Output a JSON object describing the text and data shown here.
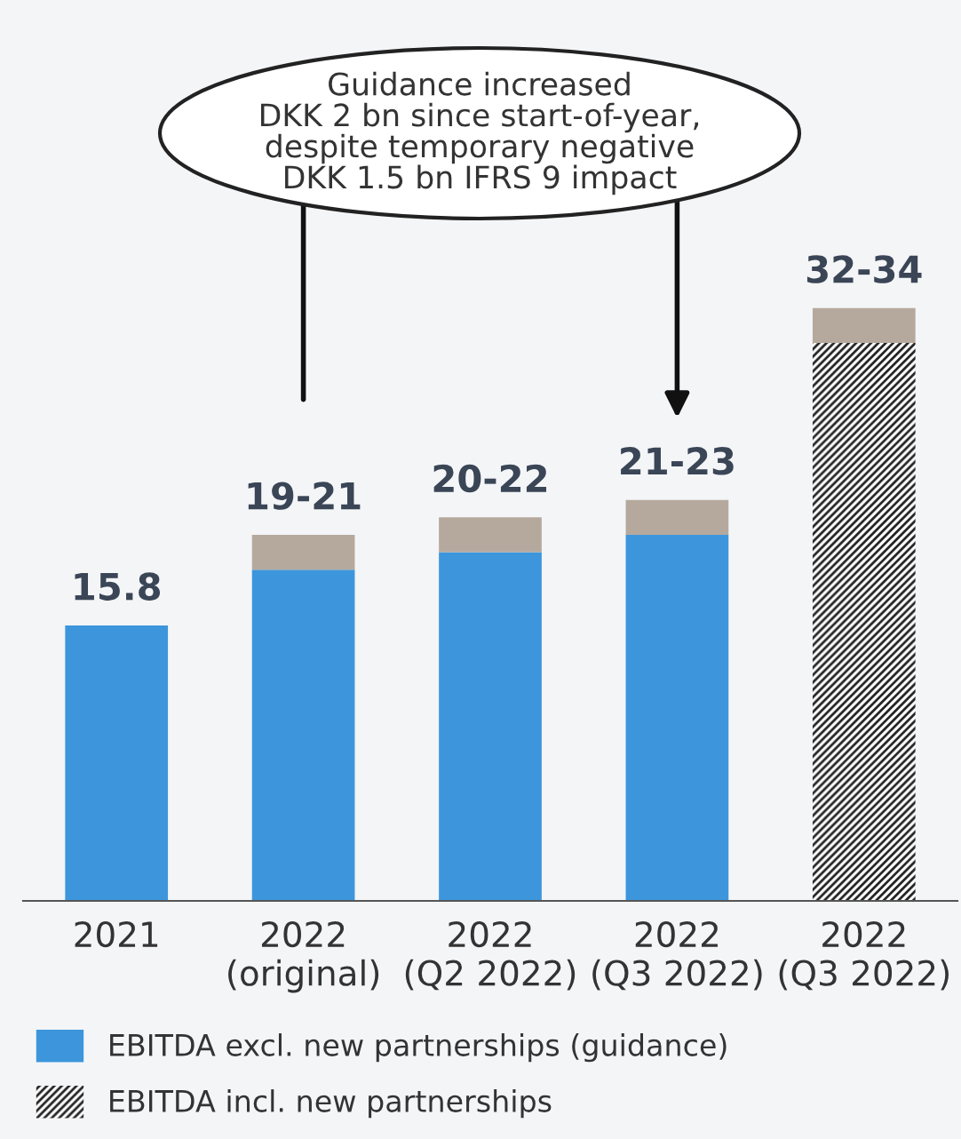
{
  "chart_data": {
    "type": "bar",
    "stacked": true,
    "categories": [
      "2021",
      "2022\n(original)",
      "2022\n(Q2 2022)",
      "2022\n(Q3 2022)",
      "2022\n(Q3 2022)"
    ],
    "series": [
      {
        "name": "EBITDA excl. new partnerships (guidance)",
        "color": "#3d96dc",
        "values": [
          15.8,
          19,
          20,
          21,
          null
        ],
        "value_labels": [
          "15.8",
          null,
          null,
          null,
          null
        ]
      },
      {
        "color": "#b5a99e",
        "values": [
          null,
          2,
          2,
          2,
          null
        ],
        "value_labels": [
          null,
          "19-21",
          "20-22",
          "21-23",
          null
        ]
      },
      {
        "name": "EBITDA incl. new partnerships",
        "color": "#ffffff",
        "values": [
          null,
          null,
          null,
          null,
          32
        ]
      },
      {
        "color": "#b5a99e",
        "values": [
          null,
          null,
          null,
          null,
          2
        ],
        "value_labels": [
          null,
          null,
          null,
          null,
          "32-34"
        ]
      }
    ],
    "annotations": [
      "Guidance increased\nDKK 2 bn since start-of-year,\ndespite temporary negative\nDKK 1.5 bn IFRS 9 impact"
    ],
    "legend": "bottom",
    "tick_labels": "x",
    "grid": false
  }
}
